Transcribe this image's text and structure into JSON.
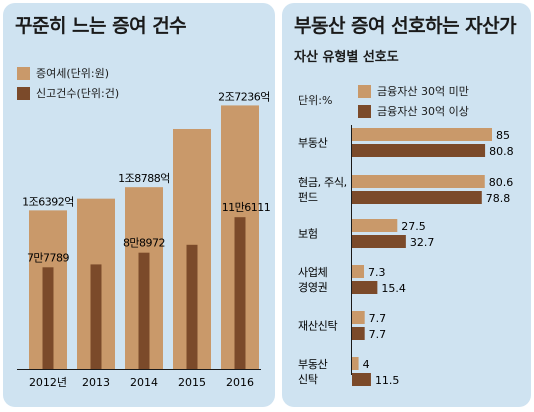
{
  "left": {
    "title": "꾸준히 느는 증여 건수",
    "legend": [
      {
        "label": "증여세(단위:원)",
        "color": "#c9996a"
      },
      {
        "label": "신고건수(단위:건)",
        "color": "#7b4a2a"
      }
    ]
  },
  "right": {
    "title": "부동산 증여 선호하는 자산가",
    "subtitle": "자산 유형별 선호도",
    "unit": "단위:%",
    "legend": [
      {
        "label": "금융자산 30억 미만",
        "color": "#c9996a"
      },
      {
        "label": "금융자산 30억 이상",
        "color": "#7b4a2a"
      }
    ]
  },
  "chart_data": [
    {
      "type": "bar",
      "title": "꾸준히 느는 증여 건수",
      "categories": [
        "2012년",
        "2013",
        "2014",
        "2015",
        "2016"
      ],
      "series": [
        {
          "name": "증여세(단위:원)",
          "color": "#c9996a",
          "values": [
            16392,
            17600,
            18788,
            24800,
            27236
          ],
          "labels": [
            "1조6392억",
            "",
            "1조8788억",
            "",
            "2조7236억"
          ]
        },
        {
          "name": "신고건수(단위:건)",
          "color": "#7b4a2a",
          "values": [
            77789,
            80000,
            88972,
            95000,
            116111
          ],
          "labels": [
            "7만7789",
            "",
            "8만8972",
            "",
            "11만6111"
          ]
        }
      ]
    },
    {
      "type": "bar",
      "orientation": "horizontal",
      "title": "부동산 증여 선호하는 자산가",
      "subtitle": "자산 유형별 선호도",
      "unit": "단위:%",
      "categories": [
        [
          "부동산"
        ],
        [
          "현금, 주식,",
          "펀드"
        ],
        [
          "보험"
        ],
        [
          "사업체",
          "경영권"
        ],
        [
          "재산신탁"
        ],
        [
          "부동산",
          "신탁"
        ]
      ],
      "xlim": [
        0,
        90
      ],
      "series": [
        {
          "name": "금융자산 30억 미만",
          "color": "#c9996a",
          "values": [
            85,
            80.6,
            27.5,
            7.3,
            7.7,
            4
          ],
          "labels": [
            "85",
            "80.6",
            "27.5",
            "7.3",
            "7.7",
            "4"
          ]
        },
        {
          "name": "금융자산 30억 이상",
          "color": "#7b4a2a",
          "values": [
            80.8,
            78.8,
            32.7,
            15.4,
            7.7,
            11.5
          ],
          "labels": [
            "80.8",
            "78.8",
            "32.7",
            "15.4",
            "7.7",
            "11.5"
          ]
        }
      ]
    }
  ]
}
